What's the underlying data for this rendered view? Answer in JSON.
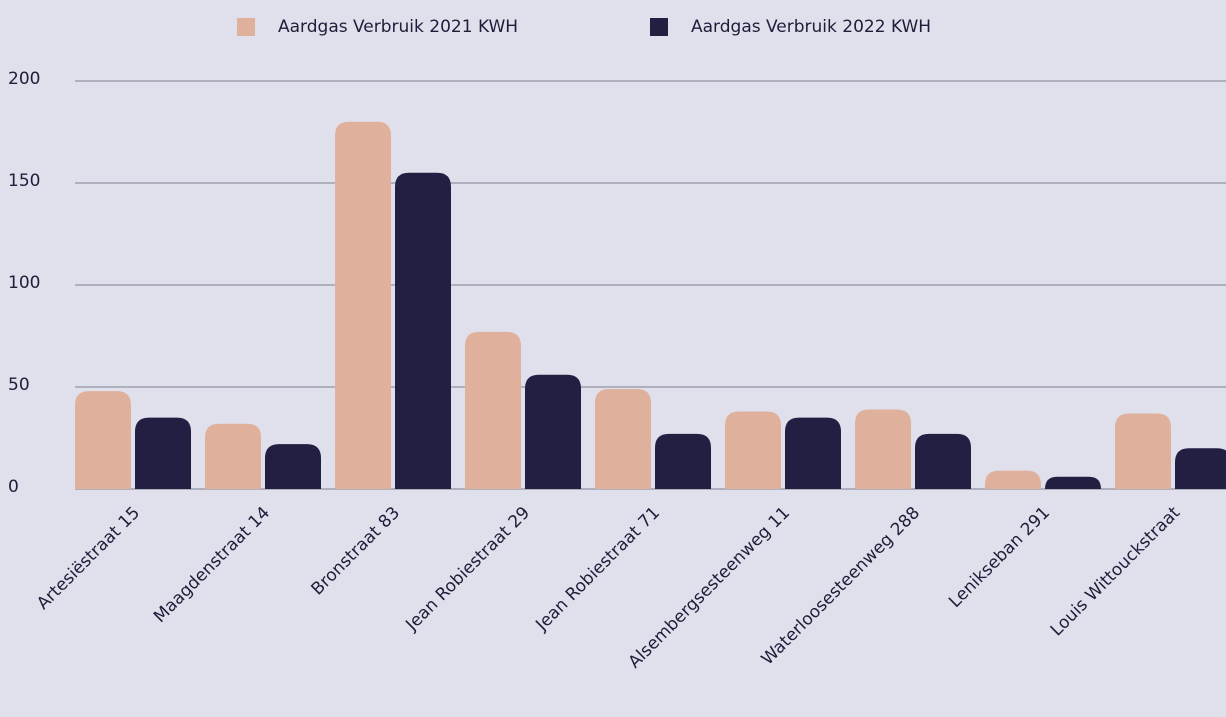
{
  "chart_data": {
    "type": "bar",
    "categories": [
      "Artesiëstraat 15",
      "Maagdenstraat 14",
      "Bronstraat 83",
      "Jean Robiestraat 29",
      "Jean Robiestraat 71",
      "Alsembergsesteenweg 11",
      "Waterloosesteenweg 288",
      "Lenikseban 291",
      "Louis Wittouckstraat"
    ],
    "series": [
      {
        "name": "Aardgas Verbruik 2021 KWH",
        "color": "#dfb19c",
        "values": [
          48,
          32,
          180,
          77,
          49,
          38,
          39,
          9,
          37
        ]
      },
      {
        "name": "Aardgas Verbruik 2022 KWH",
        "color": "#221f42",
        "values": [
          35,
          22,
          155,
          56,
          27,
          35,
          27,
          6,
          20
        ]
      }
    ],
    "ylim": [
      0,
      200
    ],
    "yticks": [
      0,
      50,
      100,
      150,
      200
    ],
    "grid": true,
    "legend": "top"
  }
}
